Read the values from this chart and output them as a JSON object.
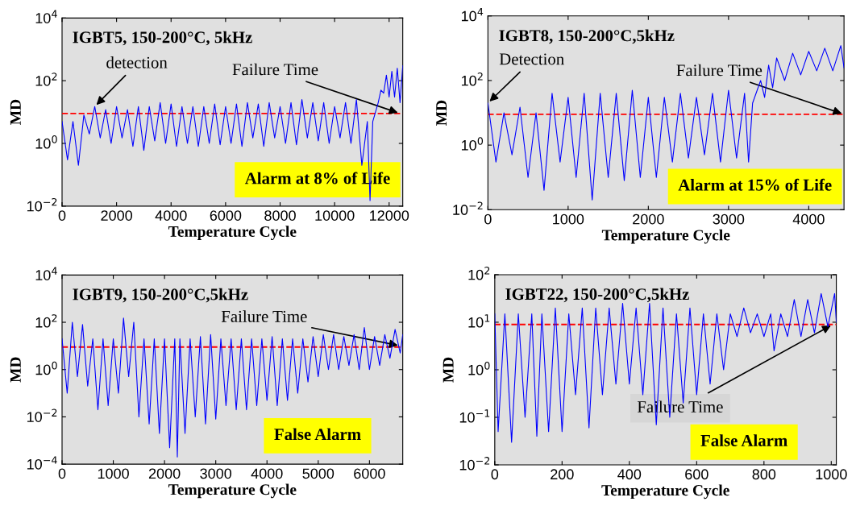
{
  "chart_data": [
    {
      "type": "line",
      "title": "IGBT5, 150-200°C, 5kHz",
      "xlabel": "Temperature Cycle",
      "ylabel": "MD",
      "log": "y",
      "line_style": "solid",
      "xlim": [
        0,
        12500
      ],
      "xticks": [
        0,
        2000,
        4000,
        6000,
        8000,
        10000,
        12000
      ],
      "ylim": [
        0.01,
        10000
      ],
      "yticks": [
        {
          "value": 0.01,
          "label": "10$^{−2}$"
        },
        {
          "value": 1,
          "label": "10$^{0}$"
        },
        {
          "value": 100,
          "label": "10$^{2}$"
        },
        {
          "value": 10000,
          "label": "10$^{4}$"
        }
      ],
      "ref_lines": [
        {
          "axis": "y",
          "value": 9,
          "label": null,
          "color": "#ff0000",
          "line_style": "dashed"
        }
      ],
      "annotations": [
        {
          "text": "detection",
          "x": 1200,
          "y": 15
        },
        {
          "text": "Failure Time",
          "x": 12400,
          "y": 9
        },
        "Alarm at 8% of Life"
      ],
      "series": [
        {
          "color": "#0000ff",
          "x": [
            0,
            200,
            400,
            600,
            800,
            1000,
            1200,
            1400,
            1600,
            1800,
            2000,
            2200,
            2400,
            2600,
            2800,
            3000,
            3200,
            3400,
            3600,
            3800,
            4000,
            4200,
            4400,
            4600,
            4800,
            5000,
            5200,
            5400,
            5600,
            5800,
            6000,
            6200,
            6400,
            6600,
            6800,
            7000,
            7200,
            7400,
            7600,
            7800,
            8000,
            8200,
            8400,
            8600,
            8800,
            9000,
            9200,
            9400,
            9600,
            9800,
            10000,
            10200,
            10400,
            10600,
            10800,
            11000,
            11200,
            11300,
            11400,
            11500,
            11600,
            11700,
            11800,
            11900,
            12000,
            12100,
            12200,
            12300,
            12400,
            12500
          ],
          "values": [
            5,
            0.3,
            5,
            0.2,
            8,
            2,
            15,
            1.5,
            12,
            1,
            15,
            1.5,
            12,
            0.8,
            15,
            0.6,
            15,
            1.2,
            20,
            1,
            18,
            0.8,
            15,
            1,
            15,
            0.8,
            15,
            1,
            18,
            0.9,
            15,
            1,
            18,
            0.8,
            20,
            1.5,
            18,
            0.8,
            20,
            1.5,
            15,
            1,
            20,
            0.9,
            25,
            1.5,
            20,
            1.2,
            20,
            1,
            15,
            1.5,
            20,
            1,
            25,
            0.2,
            5,
            0.015,
            5,
            10,
            20,
            50,
            40,
            150,
            30,
            200,
            30,
            250,
            20,
            300
          ]
        }
      ]
    },
    {
      "type": "line",
      "title": "IGBT8, 150-200°C,5kHz",
      "xlabel": "Temperature Cycle",
      "ylabel": "MD",
      "log": "y",
      "line_style": "solid",
      "xlim": [
        0,
        4440
      ],
      "xticks": [
        0,
        1000,
        2000,
        3000,
        4000
      ],
      "ylim": [
        0.01,
        10000
      ],
      "yticks": [
        {
          "value": 0.01,
          "label": "10$^{−2}$"
        },
        {
          "value": 1,
          "label": "10$^{0}$"
        },
        {
          "value": 100,
          "label": "10$^{2}$"
        },
        {
          "value": 10000,
          "label": "10$^{4}$"
        }
      ],
      "ref_lines": [
        {
          "axis": "y",
          "value": 9,
          "label": null,
          "color": "#ff0000",
          "line_style": "dashed"
        }
      ],
      "annotations": [
        {
          "text": "Detection",
          "x": 0,
          "y": 20
        },
        {
          "text": "Failure Time",
          "x": 4440,
          "y": 9
        },
        "Alarm at 15% of Life"
      ],
      "series": [
        {
          "color": "#0000ff",
          "x": [
            0,
            100,
            200,
            300,
            400,
            500,
            600,
            700,
            800,
            900,
            1000,
            1100,
            1200,
            1300,
            1400,
            1500,
            1600,
            1700,
            1800,
            1900,
            2000,
            2100,
            2200,
            2300,
            2400,
            2500,
            2600,
            2700,
            2800,
            2900,
            3000,
            3100,
            3200,
            3250,
            3300,
            3400,
            3450,
            3500,
            3550,
            3600,
            3700,
            3800,
            3900,
            4000,
            4100,
            4200,
            4300,
            4400,
            4440
          ],
          "values": [
            20,
            0.3,
            10,
            0.5,
            15,
            0.1,
            10,
            0.04,
            40,
            0.3,
            30,
            0.1,
            40,
            0.02,
            40,
            0.1,
            40,
            0.08,
            50,
            0.1,
            30,
            0.1,
            30,
            0.3,
            40,
            0.4,
            30,
            0.5,
            40,
            0.3,
            50,
            0.4,
            40,
            0.3,
            20,
            100,
            30,
            300,
            60,
            500,
            100,
            700,
            150,
            800,
            200,
            1000,
            200,
            1200,
            250
          ]
        }
      ]
    },
    {
      "type": "line",
      "title": "IGBT9, 150-200°C,5kHz",
      "xlabel": "Temperature Cycle",
      "ylabel": "MD",
      "log": "y",
      "line_style": "solid",
      "xlim": [
        0,
        6650
      ],
      "xticks": [
        0,
        1000,
        2000,
        3000,
        4000,
        5000,
        6000
      ],
      "ylim": [
        0.0001,
        10000
      ],
      "yticks": [
        {
          "value": 0.0001,
          "label": "10$^{−4}$"
        },
        {
          "value": 0.01,
          "label": "10$^{−2}$"
        },
        {
          "value": 1,
          "label": "10$^{0}$"
        },
        {
          "value": 100,
          "label": "10$^{2}$"
        },
        {
          "value": 10000,
          "label": "10$^{4}$"
        }
      ],
      "ref_lines": [
        {
          "axis": "y",
          "value": 9,
          "label": null,
          "color": "#ff0000",
          "line_style": "dashed"
        }
      ],
      "annotations": [
        {
          "text": "Failure Time",
          "x": 6600,
          "y": 10
        },
        "False Alarm"
      ],
      "series": [
        {
          "color": "#0000ff",
          "x": [
            0,
            100,
            200,
            300,
            400,
            500,
            600,
            700,
            800,
            900,
            1000,
            1100,
            1200,
            1300,
            1400,
            1500,
            1600,
            1700,
            1800,
            1900,
            2000,
            2100,
            2200,
            2250,
            2300,
            2400,
            2500,
            2600,
            2700,
            2800,
            2900,
            3000,
            3100,
            3200,
            3300,
            3400,
            3500,
            3600,
            3700,
            3800,
            3900,
            4000,
            4100,
            4200,
            4300,
            4400,
            4500,
            4600,
            4700,
            4800,
            4900,
            5000,
            5100,
            5200,
            5300,
            5400,
            5500,
            5600,
            5700,
            5800,
            5900,
            6000,
            6100,
            6200,
            6300,
            6400,
            6500,
            6600,
            6650
          ],
          "values": [
            20,
            0.1,
            100,
            0.5,
            80,
            0.2,
            20,
            0.02,
            20,
            0.03,
            20,
            0.1,
            150,
            0.5,
            100,
            0.01,
            20,
            0.005,
            20,
            0.002,
            20,
            0.0005,
            20,
            0.0002,
            20,
            0.002,
            20,
            0.01,
            25,
            0.005,
            30,
            0.008,
            20,
            0.03,
            20,
            0.02,
            20,
            0.02,
            20,
            0.03,
            20,
            0.05,
            25,
            0.03,
            20,
            0.05,
            20,
            0.1,
            20,
            0.3,
            25,
            0.5,
            30,
            1,
            30,
            1,
            25,
            1.5,
            30,
            1,
            60,
            1,
            25,
            1.5,
            30,
            3,
            50,
            5,
            30
          ]
        }
      ]
    },
    {
      "type": "line",
      "title": "IGBT22, 150-200°C,5kHz",
      "xlabel": "Temperature Cycle",
      "ylabel": "MD",
      "log": "y",
      "line_style": "solid",
      "xlim": [
        0,
        1015
      ],
      "xticks": [
        0,
        200,
        400,
        600,
        800,
        1000
      ],
      "ylim": [
        0.01,
        100
      ],
      "yticks": [
        {
          "value": 0.01,
          "label": "10$^{−2}$"
        },
        {
          "value": 0.1,
          "label": "10$^{−1}$"
        },
        {
          "value": 1,
          "label": "10$^{0}$"
        },
        {
          "value": 10,
          "label": "10$^{1}$"
        },
        {
          "value": 100,
          "label": "10$^{2}$"
        }
      ],
      "ref_lines": [
        {
          "axis": "y",
          "value": 9,
          "label": null,
          "color": "#ff0000",
          "line_style": "dashed"
        }
      ],
      "annotations": [
        {
          "text": "Failure Time",
          "x": 1005,
          "y": 9
        },
        "False Alarm"
      ],
      "series": [
        {
          "color": "#0000ff",
          "x": [
            0,
            10,
            30,
            50,
            70,
            90,
            110,
            125,
            140,
            160,
            180,
            200,
            220,
            240,
            260,
            280,
            300,
            320,
            340,
            360,
            380,
            400,
            420,
            440,
            460,
            480,
            500,
            520,
            540,
            560,
            580,
            600,
            620,
            640,
            660,
            680,
            700,
            720,
            740,
            760,
            780,
            800,
            820,
            830,
            850,
            870,
            890,
            910,
            930,
            950,
            970,
            990,
            1010,
            1015
          ],
          "values": [
            15,
            0.05,
            15,
            0.03,
            15,
            0.1,
            15,
            0.04,
            15,
            0.05,
            20,
            0.05,
            15,
            0.3,
            20,
            0.06,
            20,
            0.3,
            20,
            0.5,
            25,
            0.5,
            20,
            0.3,
            25,
            0.07,
            20,
            0.1,
            15,
            0.2,
            20,
            0.3,
            15,
            0.5,
            15,
            1,
            15,
            5,
            20,
            6,
            15,
            5,
            15,
            2.5,
            15,
            5,
            30,
            5,
            30,
            6,
            40,
            8,
            40,
            10
          ]
        }
      ]
    }
  ]
}
